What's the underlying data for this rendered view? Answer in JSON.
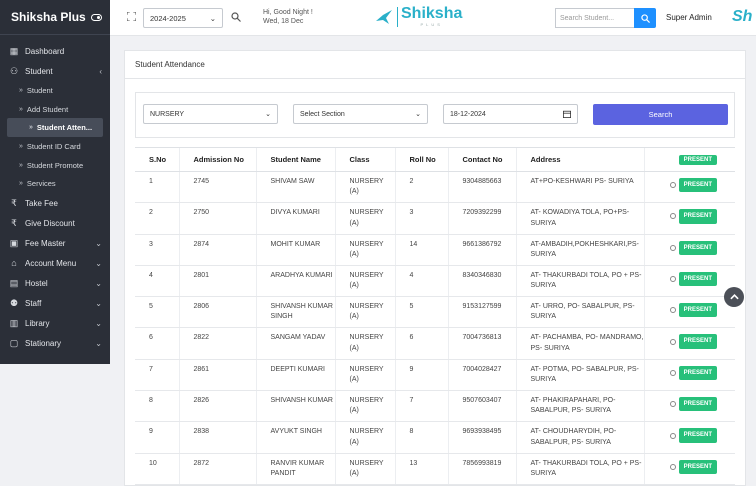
{
  "app": {
    "name": "Shiksha Plus"
  },
  "sidebar": {
    "items": [
      {
        "label": "Dashboard",
        "icon": "grid-icon"
      },
      {
        "label": "Student",
        "icon": "user-icon"
      }
    ],
    "student_sub": [
      {
        "label": "Student"
      },
      {
        "label": "Add Student"
      },
      {
        "label": "Student Atten..."
      },
      {
        "label": "Student ID Card"
      },
      {
        "label": "Student Promote"
      },
      {
        "label": "Services"
      }
    ],
    "items2": [
      {
        "label": "Take Fee",
        "icon": "rupee-icon"
      },
      {
        "label": "Give Discount",
        "icon": "rupee-icon"
      },
      {
        "label": "Fee Master",
        "icon": "wallet-icon"
      },
      {
        "label": "Account Menu",
        "icon": "bank-icon"
      },
      {
        "label": "Hostel",
        "icon": "hostel-icon"
      },
      {
        "label": "Staff",
        "icon": "users-icon"
      },
      {
        "label": "Library",
        "icon": "library-icon"
      },
      {
        "label": "Stationary",
        "icon": "folder-icon"
      }
    ]
  },
  "header": {
    "session": "2024-2025",
    "greeting": "Hi, Good Night !",
    "date": "Wed, 18 Dec",
    "logo_text": "Shiksha",
    "logo_sub": "PLUS",
    "search_placeholder": "Search Student...",
    "user": "Super Admin",
    "user_logo": "Sh"
  },
  "page": {
    "title": "Student Attendance",
    "filters": {
      "class": "NURSERY",
      "section": "Select Section",
      "date": "18-12-2024",
      "search_button": "Search"
    }
  },
  "table": {
    "headers": [
      "S.No",
      "Admission No",
      "Student Name",
      "Class",
      "Roll No",
      "Contact No",
      "Address"
    ],
    "status_header": "PRESENT",
    "status_label": "PRESENT",
    "rows": [
      [
        "1",
        "2745",
        "SHIVAM SAW",
        "NURSERY (A)",
        "2",
        "9304885663",
        "AT+PO-KESHWARI PS- SURIYA"
      ],
      [
        "2",
        "2750",
        "DIVYA KUMARI",
        "NURSERY (A)",
        "3",
        "7209392299",
        "AT- KOWADIYA TOLA, PO+PS- SURIYA"
      ],
      [
        "3",
        "2874",
        "MOHIT KUMAR",
        "NURSERY (A)",
        "14",
        "9661386792",
        "AT-AMBADIH,POKHESHKARI,PS- SURIYA"
      ],
      [
        "4",
        "2801",
        "ARADHYA KUMARI",
        "NURSERY (A)",
        "4",
        "8340346830",
        "AT- THAKURBADI TOLA, PO + PS- SURIYA"
      ],
      [
        "5",
        "2806",
        "SHIVANSH KUMAR SINGH",
        "NURSERY (A)",
        "5",
        "9153127599",
        "AT- URRO, PO- SABALPUR, PS- SURIYA"
      ],
      [
        "6",
        "2822",
        "SANGAM YADAV",
        "NURSERY (A)",
        "6",
        "7004736813",
        "AT- PACHAMBA, PO- MANDRAMO, PS- SURIYA"
      ],
      [
        "7",
        "2861",
        "DEEPTI KUMARI",
        "NURSERY (A)",
        "9",
        "7004028427",
        "AT- POTMA, PO- SABALPUR, PS- SURIYA"
      ],
      [
        "8",
        "2826",
        "SHIVANSH KUMAR",
        "NURSERY (A)",
        "7",
        "9507603407",
        "AT- PHAKIRAPAHARI, PO- SABALPUR, PS- SURIYA"
      ],
      [
        "9",
        "2838",
        "AVYUKT SINGH",
        "NURSERY (A)",
        "8",
        "9693938495",
        "AT- CHOUDHARYDIH, PO- SABALPUR, PS- SURIYA"
      ],
      [
        "10",
        "2872",
        "RANVIR KUMAR PANDIT",
        "NURSERY (A)",
        "13",
        "7856993819",
        "AT- THAKURBADI TOLA, PO + PS- SURIYA"
      ]
    ]
  },
  "colors": {
    "sidebar": "#2b2f38",
    "accent": "#5b63e0",
    "present": "#27c07a",
    "brand": "#2ab0c9"
  }
}
